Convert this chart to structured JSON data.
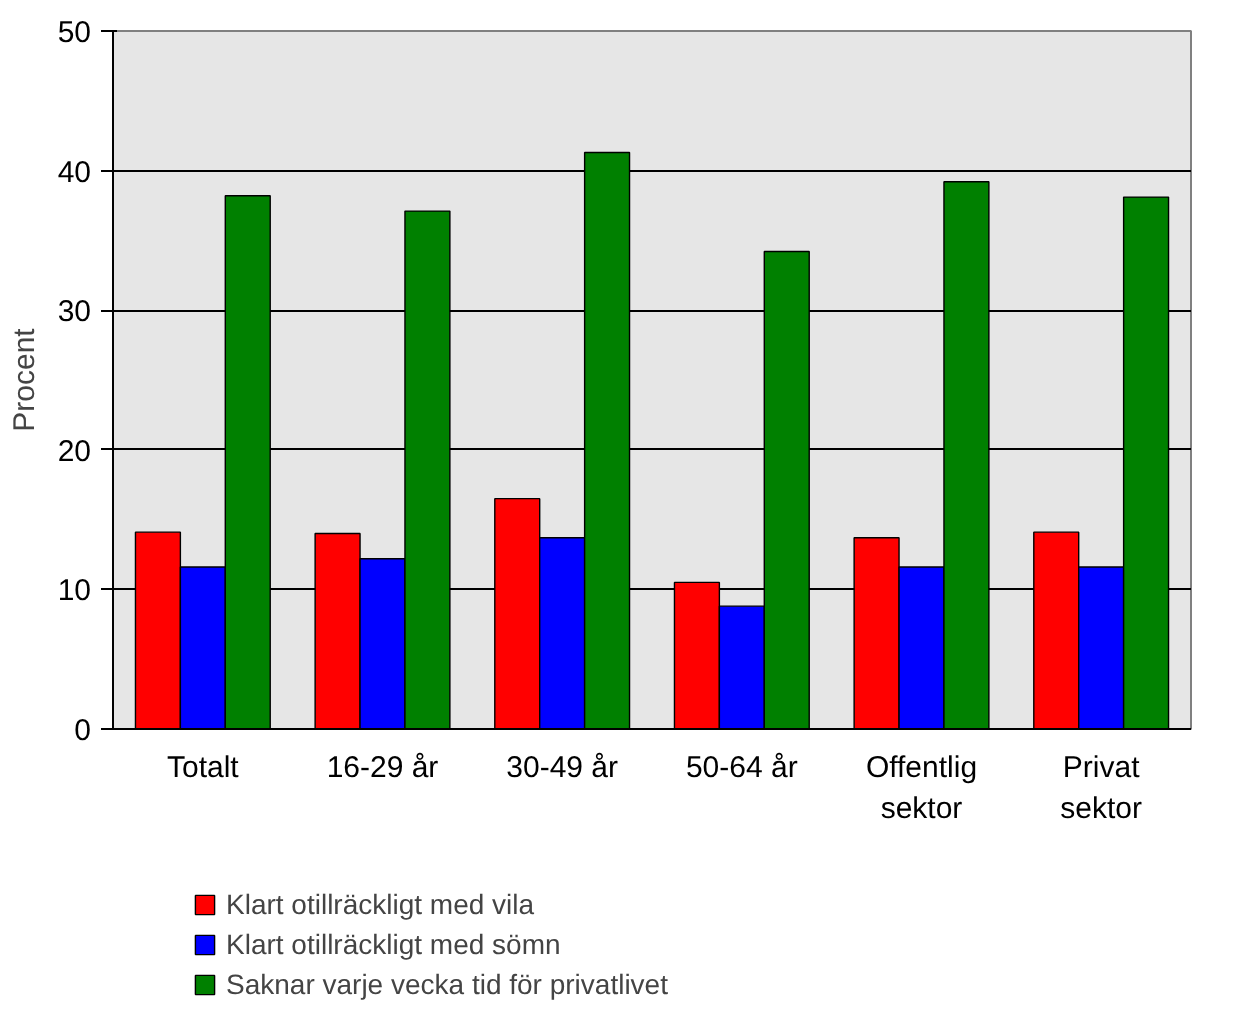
{
  "chart_data": {
    "type": "bar",
    "ylabel": "Procent",
    "categories": [
      "Totalt",
      "16-29 år",
      "30-49 år",
      "50-64 år",
      "Offentlig\nsektor",
      "Privat\nsektor"
    ],
    "series": [
      {
        "name": "Klart otillräckligt med vila",
        "color": "#ff0000",
        "values": [
          14.1,
          14,
          16.5,
          10.5,
          13.7,
          14.1
        ]
      },
      {
        "name": "Klart otillräckligt med sömn",
        "color": "#0000ff",
        "values": [
          11.6,
          12.2,
          13.7,
          8.8,
          11.6,
          11.6
        ]
      },
      {
        "name": "Saknar varje vecka tid för privatlivet",
        "color": "#008000",
        "values": [
          38.2,
          37.1,
          41.3,
          34.2,
          39.2,
          38.1
        ]
      }
    ],
    "ylim": [
      0,
      50
    ],
    "yticks": [
      0,
      10,
      20,
      30,
      40,
      50
    ],
    "grid": "y",
    "legend": "bottom"
  }
}
